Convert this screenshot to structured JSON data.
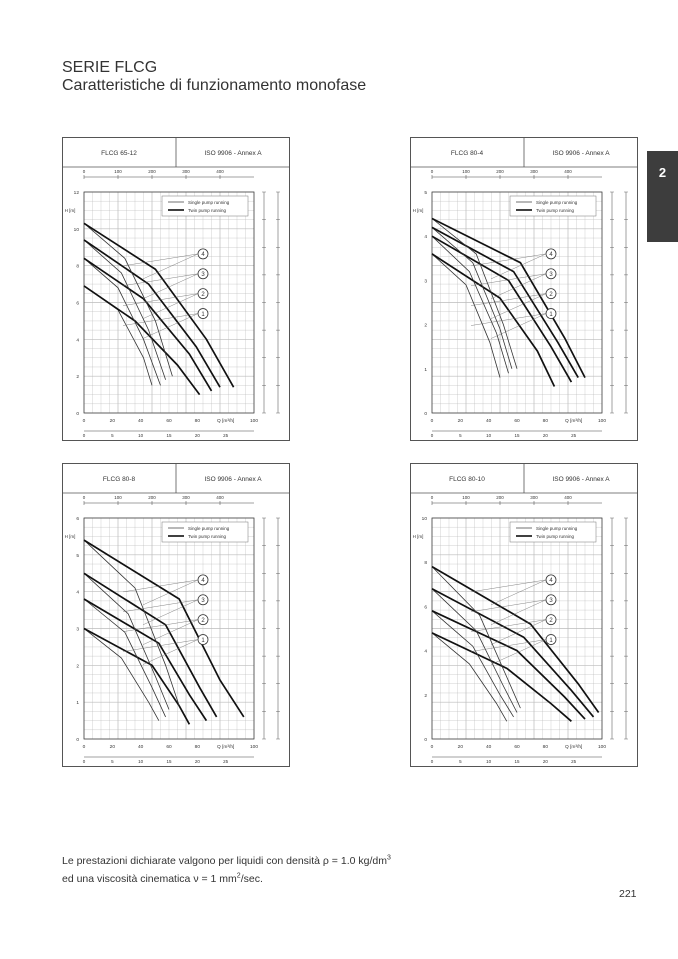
{
  "header": {
    "title": "SERIE FLCG",
    "subtitle": "Caratteristiche di funzionamento monofase"
  },
  "side_tab": {
    "label": "2"
  },
  "legend": {
    "single": "Single pump running",
    "twin": "Twin pump running"
  },
  "footnote": {
    "line1_pre": "Le prestazioni dichiarate valgono per liquidi con densità ρ = 1.0 kg/dm",
    "line1_sup": "3",
    "line2_pre": "ed una viscosità cinematica ν = 1 mm",
    "line2_sup": "2",
    "line2_post": "/sec."
  },
  "page_number": "221",
  "chart_data": [
    {
      "type": "line",
      "model": "FLCG 65-12",
      "standard": "ISO 9906 - Annex A",
      "xlabel": "Q [m³/h]",
      "ylabel": "H [m]",
      "xlim": [
        0,
        100
      ],
      "ylim": [
        0,
        12
      ],
      "x_ticks": [
        "0",
        "20",
        "40",
        "60",
        "80",
        "Q [m³/h]",
        "100"
      ],
      "y_ticks": [
        "0",
        "2",
        "4",
        "6",
        "8",
        "10",
        "12"
      ],
      "top_ticks": [
        "0",
        "100",
        "200",
        "300",
        "400"
      ],
      "bottom_ticks": [
        "0",
        "5",
        "10",
        "15",
        "20",
        "25"
      ],
      "markers": [
        "1",
        "2",
        "3",
        "4"
      ],
      "series": [
        {
          "name": "1",
          "single": [
            [
              0,
              6.9
            ],
            [
              20,
              5.6
            ],
            [
              35,
              3.0
            ],
            [
              40,
              1.5
            ]
          ],
          "twin": [
            [
              0,
              6.9
            ],
            [
              30,
              5.0
            ],
            [
              55,
              2.6
            ],
            [
              68,
              1.0
            ]
          ]
        },
        {
          "name": "2",
          "single": [
            [
              0,
              8.4
            ],
            [
              20,
              6.8
            ],
            [
              35,
              4.0
            ],
            [
              45,
              1.5
            ]
          ],
          "twin": [
            [
              0,
              8.4
            ],
            [
              35,
              6.2
            ],
            [
              62,
              3.2
            ],
            [
              75,
              1.2
            ]
          ]
        },
        {
          "name": "3",
          "single": [
            [
              0,
              9.4
            ],
            [
              22,
              7.6
            ],
            [
              38,
              4.5
            ],
            [
              48,
              1.8
            ]
          ],
          "twin": [
            [
              0,
              9.4
            ],
            [
              38,
              7.0
            ],
            [
              66,
              3.6
            ],
            [
              80,
              1.4
            ]
          ]
        },
        {
          "name": "4",
          "single": [
            [
              0,
              10.3
            ],
            [
              24,
              8.4
            ],
            [
              42,
              5.0
            ],
            [
              52,
              2.0
            ]
          ],
          "twin": [
            [
              0,
              10.3
            ],
            [
              42,
              7.8
            ],
            [
              72,
              4.0
            ],
            [
              88,
              1.4
            ]
          ]
        }
      ]
    },
    {
      "type": "line",
      "model": "FLCG 80-4",
      "standard": "ISO 9906 - Annex A",
      "xlabel": "Q [m³/h]",
      "ylabel": "H [m]",
      "xlim": [
        0,
        100
      ],
      "ylim": [
        0,
        5
      ],
      "x_ticks": [
        "0",
        "20",
        "40",
        "60",
        "80",
        "Q [m³/h]",
        "100"
      ],
      "y_ticks": [
        "0",
        "1",
        "2",
        "3",
        "4",
        "5"
      ],
      "top_ticks": [
        "0",
        "100",
        "200",
        "300",
        "400"
      ],
      "bottom_ticks": [
        "0",
        "5",
        "10",
        "15",
        "20",
        "25"
      ],
      "markers": [
        "1",
        "2",
        "3",
        "4"
      ],
      "series": [
        {
          "name": "1",
          "single": [
            [
              0,
              3.6
            ],
            [
              20,
              2.9
            ],
            [
              34,
              1.6
            ],
            [
              40,
              0.8
            ]
          ],
          "twin": [
            [
              0,
              3.6
            ],
            [
              40,
              2.6
            ],
            [
              62,
              1.4
            ],
            [
              72,
              0.6
            ]
          ]
        },
        {
          "name": "2",
          "single": [
            [
              0,
              4.0
            ],
            [
              22,
              3.2
            ],
            [
              38,
              1.8
            ],
            [
              45,
              0.9
            ]
          ],
          "twin": [
            [
              0,
              4.0
            ],
            [
              45,
              3.0
            ],
            [
              70,
              1.5
            ],
            [
              82,
              0.7
            ]
          ]
        },
        {
          "name": "3",
          "single": [
            [
              0,
              4.2
            ],
            [
              24,
              3.4
            ],
            [
              40,
              1.9
            ],
            [
              47,
              1.0
            ]
          ],
          "twin": [
            [
              0,
              4.2
            ],
            [
              48,
              3.2
            ],
            [
              74,
              1.6
            ],
            [
              86,
              0.8
            ]
          ]
        },
        {
          "name": "4",
          "single": [
            [
              0,
              4.4
            ],
            [
              26,
              3.6
            ],
            [
              42,
              2.0
            ],
            [
              50,
              1.0
            ]
          ],
          "twin": [
            [
              0,
              4.4
            ],
            [
              52,
              3.4
            ],
            [
              78,
              1.7
            ],
            [
              90,
              0.8
            ]
          ]
        }
      ]
    },
    {
      "type": "line",
      "model": "FLCG 80-8",
      "standard": "ISO 9906 - Annex A",
      "xlabel": "Q [m³/h]",
      "ylabel": "H [m]",
      "xlim": [
        0,
        100
      ],
      "ylim": [
        0,
        6
      ],
      "x_ticks": [
        "0",
        "20",
        "40",
        "60",
        "80",
        "Q [m³/h]",
        "100"
      ],
      "y_ticks": [
        "0",
        "1",
        "2",
        "3",
        "4",
        "5",
        "6"
      ],
      "top_ticks": [
        "0",
        "100",
        "200",
        "300",
        "400"
      ],
      "bottom_ticks": [
        "0",
        "5",
        "10",
        "15",
        "20",
        "25"
      ],
      "markers": [
        "1",
        "2",
        "3",
        "4"
      ],
      "series": [
        {
          "name": "1",
          "single": [
            [
              0,
              3.0
            ],
            [
              22,
              2.2
            ],
            [
              38,
              1.0
            ],
            [
              44,
              0.5
            ]
          ],
          "twin": [
            [
              0,
              3.0
            ],
            [
              40,
              2.0
            ],
            [
              56,
              0.9
            ],
            [
              62,
              0.4
            ]
          ]
        },
        {
          "name": "2",
          "single": [
            [
              0,
              3.8
            ],
            [
              24,
              2.9
            ],
            [
              40,
              1.4
            ],
            [
              48,
              0.6
            ]
          ],
          "twin": [
            [
              0,
              3.8
            ],
            [
              44,
              2.6
            ],
            [
              62,
              1.2
            ],
            [
              72,
              0.5
            ]
          ]
        },
        {
          "name": "3",
          "single": [
            [
              0,
              4.5
            ],
            [
              26,
              3.4
            ],
            [
              42,
              1.7
            ],
            [
              50,
              0.8
            ]
          ],
          "twin": [
            [
              0,
              4.5
            ],
            [
              48,
              3.1
            ],
            [
              68,
              1.4
            ],
            [
              78,
              0.6
            ]
          ]
        },
        {
          "name": "4",
          "single": [
            [
              0,
              5.4
            ],
            [
              30,
              4.1
            ],
            [
              48,
              2.0
            ],
            [
              56,
              0.9
            ]
          ],
          "twin": [
            [
              0,
              5.4
            ],
            [
              56,
              3.8
            ],
            [
              80,
              1.6
            ],
            [
              94,
              0.6
            ]
          ]
        }
      ]
    },
    {
      "type": "line",
      "model": "FLCG 80-10",
      "standard": "ISO 9906 - Annex A",
      "xlabel": "Q [m³/h]",
      "ylabel": "H [m]",
      "xlim": [
        0,
        100
      ],
      "ylim": [
        0,
        10
      ],
      "x_ticks": [
        "0",
        "20",
        "40",
        "60",
        "80",
        "Q [m³/h]",
        "100"
      ],
      "y_ticks": [
        "0",
        "2",
        "4",
        "6",
        "8",
        "10"
      ],
      "top_ticks": [
        "0",
        "100",
        "200",
        "300",
        "400"
      ],
      "bottom_ticks": [
        "0",
        "5",
        "10",
        "15",
        "20",
        "25"
      ],
      "markers": [
        "1",
        "2",
        "3",
        "4"
      ],
      "series": [
        {
          "name": "1",
          "single": [
            [
              0,
              4.8
            ],
            [
              22,
              3.4
            ],
            [
              38,
              1.6
            ],
            [
              44,
              0.8
            ]
          ],
          "twin": [
            [
              0,
              4.8
            ],
            [
              44,
              3.2
            ],
            [
              70,
              1.6
            ],
            [
              82,
              0.8
            ]
          ]
        },
        {
          "name": "2",
          "single": [
            [
              0,
              5.8
            ],
            [
              24,
              4.2
            ],
            [
              40,
              2.0
            ],
            [
              48,
              1.0
            ]
          ],
          "twin": [
            [
              0,
              5.8
            ],
            [
              50,
              4.0
            ],
            [
              78,
              1.9
            ],
            [
              90,
              0.9
            ]
          ]
        },
        {
          "name": "3",
          "single": [
            [
              0,
              6.8
            ],
            [
              26,
              4.9
            ],
            [
              42,
              2.4
            ],
            [
              50,
              1.2
            ]
          ],
          "twin": [
            [
              0,
              6.8
            ],
            [
              54,
              4.6
            ],
            [
              82,
              2.2
            ],
            [
              95,
              1.0
            ]
          ]
        },
        {
          "name": "4",
          "single": [
            [
              0,
              7.8
            ],
            [
              28,
              5.6
            ],
            [
              44,
              2.8
            ],
            [
              52,
              1.4
            ]
          ],
          "twin": [
            [
              0,
              7.8
            ],
            [
              58,
              5.2
            ],
            [
              86,
              2.5
            ],
            [
              98,
              1.2
            ]
          ]
        }
      ]
    }
  ]
}
